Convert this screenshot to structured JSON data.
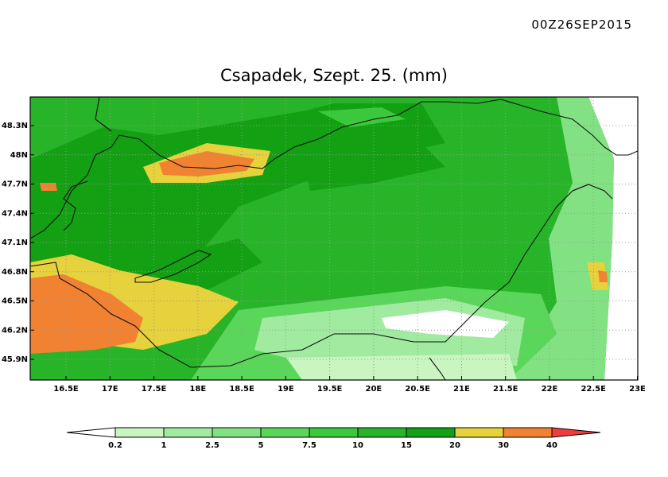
{
  "header": {
    "timestamp": "00Z26SEP2015",
    "title": "Csapadek, Szept. 25. (mm)"
  },
  "map": {
    "lon_labels": [
      "16.5E",
      "17E",
      "17.5E",
      "18E",
      "18.5E",
      "19E",
      "19.5E",
      "20E",
      "20.5E",
      "21E",
      "21.5E",
      "22E",
      "22.5E",
      "23E"
    ],
    "lat_labels": [
      "45.9N",
      "46.2N",
      "46.5N",
      "46.8N",
      "47.1N",
      "47.4N",
      "47.7N",
      "48N",
      "48.3N"
    ]
  },
  "colorbar": {
    "labels": [
      "0.2",
      "1",
      "2.5",
      "5",
      "7.5",
      "10",
      "15",
      "20",
      "30",
      "40"
    ],
    "colors": [
      "#ffffff",
      "#c8f5c0",
      "#a0eba0",
      "#82e182",
      "#5ad75a",
      "#3cc83c",
      "#28b428",
      "#13a013",
      "#e6d23c",
      "#f08232",
      "#f03c3c"
    ]
  }
}
